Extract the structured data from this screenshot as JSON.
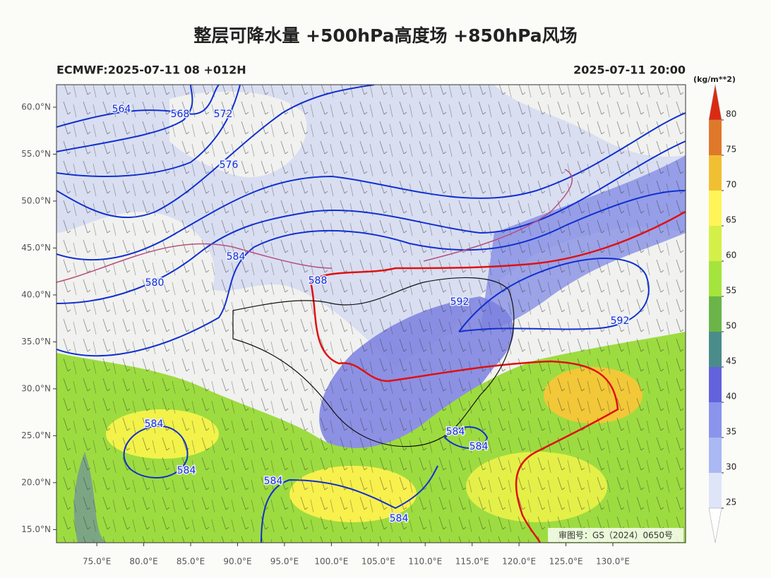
{
  "title": "整层可降水量 +500hPa高度场 +850hPa风场",
  "subtitle_left": "ECMWF:2025-07-11 08 +012H",
  "subtitle_right": "2025-07-11 20:00",
  "map": {
    "lon_range": [
      70.7,
      137.75
    ],
    "lat_range": [
      13.6,
      62.4
    ],
    "lat_ticks": [
      {
        "value": 60,
        "label": "60.0°N"
      },
      {
        "value": 55,
        "label": "55.0°N"
      },
      {
        "value": 50,
        "label": "50.0°N"
      },
      {
        "value": 45,
        "label": "45.0°N"
      },
      {
        "value": 40,
        "label": "40.0°N"
      },
      {
        "value": 35,
        "label": "35.0°N"
      },
      {
        "value": 30,
        "label": "30.0°N"
      },
      {
        "value": 25,
        "label": "25.0°N"
      },
      {
        "value": 20,
        "label": "20.0°N"
      },
      {
        "value": 15,
        "label": "15.0°N"
      }
    ],
    "lon_ticks": [
      {
        "value": 75,
        "label": "75.0°E"
      },
      {
        "value": 80,
        "label": "80.0°E"
      },
      {
        "value": 85,
        "label": "85.0°E"
      },
      {
        "value": 90,
        "label": "90.0°E"
      },
      {
        "value": 95,
        "label": "95.0°E"
      },
      {
        "value": 100,
        "label": "100.0°E"
      },
      {
        "value": 105,
        "label": "105.0°E"
      },
      {
        "value": 110,
        "label": "110.0°E"
      },
      {
        "value": 115,
        "label": "115.0°E"
      },
      {
        "value": 120,
        "label": "120.0°E"
      },
      {
        "value": 125,
        "label": "125.0°E"
      },
      {
        "value": 130,
        "label": "130.0°E"
      }
    ],
    "contour_labels": [
      "564",
      "568",
      "572",
      "576",
      "584",
      "580",
      "588",
      "592",
      "592",
      "584",
      "584",
      "584",
      "584",
      "584",
      "584"
    ],
    "credit": "审图号：GS（2024）0650号"
  },
  "colorbar": {
    "unit": "(kg/m**2)",
    "ticks": [
      25,
      30,
      35,
      40,
      45,
      50,
      55,
      60,
      65,
      70,
      75,
      80
    ],
    "colors": [
      "#dfe5f8",
      "#aab8f4",
      "#8a94ec",
      "#6262dc",
      "#4a8c8a",
      "#6ab448",
      "#a4e43c",
      "#d4f048",
      "#fff458",
      "#f0c032",
      "#e0782a"
    ],
    "over_color": "#dc2a12",
    "under_color": "#ffffff"
  }
}
